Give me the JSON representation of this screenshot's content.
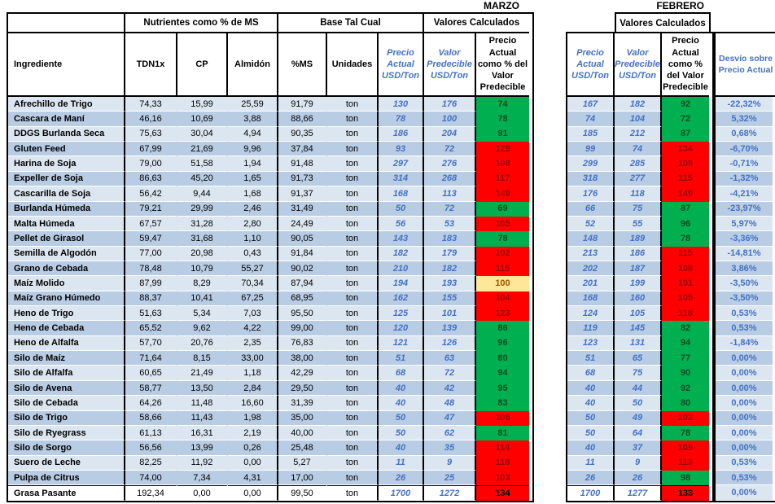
{
  "months": {
    "current": "MARZO",
    "previous": "FEBRERO"
  },
  "headers": {
    "group_nutrients": "Nutrientes como % de MS",
    "group_asfed": "Base Tal Cual",
    "group_calculated": "Valores Calculados",
    "ingredient": "Ingrediente",
    "tdn": "TDN1x",
    "cp": "CP",
    "starch": "Almidón",
    "dm": "%MS",
    "units": "Unidades",
    "price_actual": "Precio Actual USD/Ton",
    "price_predicted": "Valor Predecible USD/Ton",
    "pct": "Precio Actual como % del Valor Predecible",
    "deviation": "Desvío sobre Precio Actual"
  },
  "colors": {
    "stripe_light": "#DCE6F1",
    "stripe_dark": "#B8CCE4",
    "good_fill": "#00B050",
    "bad_fill": "#FF0000",
    "neutral_fill": "#FFE699",
    "accent_blue": "#4472C4",
    "bad_text": "#9C0006",
    "neutral_text": "#9C5700"
  },
  "rows": [
    {
      "name": "Afrechillo de Trigo",
      "tdn": "74,33",
      "cp": "15,99",
      "alm": "25,59",
      "ms": "91,79",
      "unit": "ton",
      "marzo": {
        "precio": "130",
        "valor": "176",
        "pct": "74",
        "status": "good"
      },
      "febrero": {
        "precio": "167",
        "valor": "182",
        "pct": "92",
        "status": "good"
      },
      "desvio": "-22,32%"
    },
    {
      "name": "Cascara de Maní",
      "tdn": "46,16",
      "cp": "10,69",
      "alm": "3,88",
      "ms": "88,66",
      "unit": "ton",
      "marzo": {
        "precio": "78",
        "valor": "100",
        "pct": "78",
        "status": "good"
      },
      "febrero": {
        "precio": "74",
        "valor": "104",
        "pct": "72",
        "status": "good"
      },
      "desvio": "5,32%"
    },
    {
      "name": "DDGS Burlanda Seca",
      "tdn": "75,63",
      "cp": "30,04",
      "alm": "4,94",
      "ms": "90,35",
      "unit": "ton",
      "marzo": {
        "precio": "186",
        "valor": "204",
        "pct": "91",
        "status": "good"
      },
      "febrero": {
        "precio": "185",
        "valor": "212",
        "pct": "87",
        "status": "good"
      },
      "desvio": "0,68%"
    },
    {
      "name": "Gluten Feed",
      "tdn": "67,99",
      "cp": "21,69",
      "alm": "9,96",
      "ms": "37,84",
      "unit": "ton",
      "marzo": {
        "precio": "93",
        "valor": "72",
        "pct": "129",
        "status": "bad"
      },
      "febrero": {
        "precio": "99",
        "valor": "74",
        "pct": "134",
        "status": "bad"
      },
      "desvio": "-6,70%"
    },
    {
      "name": "Harina de Soja",
      "tdn": "79,00",
      "cp": "51,58",
      "alm": "1,94",
      "ms": "91,48",
      "unit": "ton",
      "marzo": {
        "precio": "297",
        "valor": "276",
        "pct": "108",
        "status": "bad"
      },
      "febrero": {
        "precio": "299",
        "valor": "285",
        "pct": "105",
        "status": "bad"
      },
      "desvio": "-0,71%"
    },
    {
      "name": "Expeller de Soja",
      "tdn": "86,63",
      "cp": "45,20",
      "alm": "1,65",
      "ms": "91,73",
      "unit": "ton",
      "marzo": {
        "precio": "314",
        "valor": "268",
        "pct": "117",
        "status": "bad"
      },
      "febrero": {
        "precio": "318",
        "valor": "277",
        "pct": "115",
        "status": "bad"
      },
      "desvio": "-1,32%"
    },
    {
      "name": "Cascarilla de Soja",
      "tdn": "56,42",
      "cp": "9,44",
      "alm": "1,68",
      "ms": "91,37",
      "unit": "ton",
      "marzo": {
        "precio": "168",
        "valor": "113",
        "pct": "149",
        "status": "bad"
      },
      "febrero": {
        "precio": "176",
        "valor": "118",
        "pct": "149",
        "status": "bad"
      },
      "desvio": "-4,21%"
    },
    {
      "name": "Burlanda Húmeda",
      "tdn": "79,21",
      "cp": "29,99",
      "alm": "2,46",
      "ms": "31,49",
      "unit": "ton",
      "marzo": {
        "precio": "50",
        "valor": "72",
        "pct": "69",
        "status": "good"
      },
      "febrero": {
        "precio": "66",
        "valor": "75",
        "pct": "87",
        "status": "good"
      },
      "desvio": "-23,97%"
    },
    {
      "name": "Malta Húmeda",
      "tdn": "67,57",
      "cp": "31,28",
      "alm": "2,80",
      "ms": "24,49",
      "unit": "ton",
      "marzo": {
        "precio": "56",
        "valor": "53",
        "pct": "105",
        "status": "bad"
      },
      "febrero": {
        "precio": "52",
        "valor": "55",
        "pct": "96",
        "status": "good"
      },
      "desvio": "5,97%"
    },
    {
      "name": "Pellet de Girasol",
      "tdn": "59,47",
      "cp": "31,68",
      "alm": "1,10",
      "ms": "90,05",
      "unit": "ton",
      "marzo": {
        "precio": "143",
        "valor": "183",
        "pct": "78",
        "status": "good"
      },
      "febrero": {
        "precio": "148",
        "valor": "189",
        "pct": "78",
        "status": "good"
      },
      "desvio": "-3,36%"
    },
    {
      "name": "Semilla de Algodón",
      "tdn": "77,00",
      "cp": "20,98",
      "alm": "0,43",
      "ms": "91,84",
      "unit": "ton",
      "marzo": {
        "precio": "182",
        "valor": "179",
        "pct": "102",
        "status": "bad"
      },
      "febrero": {
        "precio": "213",
        "valor": "186",
        "pct": "115",
        "status": "bad"
      },
      "desvio": "-14,81%"
    },
    {
      "name": "Grano de Cebada",
      "tdn": "78,48",
      "cp": "10,79",
      "alm": "55,27",
      "ms": "90,02",
      "unit": "ton",
      "marzo": {
        "precio": "210",
        "valor": "182",
        "pct": "115",
        "status": "bad"
      },
      "febrero": {
        "precio": "202",
        "valor": "187",
        "pct": "108",
        "status": "bad"
      },
      "desvio": "3,86%"
    },
    {
      "name": "Maíz Molido",
      "tdn": "87,99",
      "cp": "8,29",
      "alm": "70,34",
      "ms": "87,94",
      "unit": "ton",
      "marzo": {
        "precio": "194",
        "valor": "193",
        "pct": "100",
        "status": "neutral"
      },
      "febrero": {
        "precio": "201",
        "valor": "199",
        "pct": "101",
        "status": "bad"
      },
      "desvio": "-3,50%"
    },
    {
      "name": "Maíz Grano Húmedo",
      "tdn": "88,37",
      "cp": "10,41",
      "alm": "67,25",
      "ms": "68,95",
      "unit": "ton",
      "marzo": {
        "precio": "162",
        "valor": "155",
        "pct": "104",
        "status": "bad"
      },
      "febrero": {
        "precio": "168",
        "valor": "160",
        "pct": "105",
        "status": "bad"
      },
      "desvio": "-3,50%"
    },
    {
      "name": "Heno de Trigo",
      "tdn": "51,63",
      "cp": "5,34",
      "alm": "7,03",
      "ms": "95,50",
      "unit": "ton",
      "marzo": {
        "precio": "125",
        "valor": "101",
        "pct": "123",
        "status": "bad"
      },
      "febrero": {
        "precio": "124",
        "valor": "105",
        "pct": "118",
        "status": "bad"
      },
      "desvio": "0,53%"
    },
    {
      "name": "Heno de Cebada",
      "tdn": "65,52",
      "cp": "9,62",
      "alm": "4,22",
      "ms": "99,00",
      "unit": "ton",
      "marzo": {
        "precio": "120",
        "valor": "139",
        "pct": "86",
        "status": "good"
      },
      "febrero": {
        "precio": "119",
        "valor": "145",
        "pct": "82",
        "status": "good"
      },
      "desvio": "0,53%"
    },
    {
      "name": "Heno de Alfalfa",
      "tdn": "57,70",
      "cp": "20,76",
      "alm": "2,35",
      "ms": "76,83",
      "unit": "ton",
      "marzo": {
        "precio": "121",
        "valor": "126",
        "pct": "96",
        "status": "good"
      },
      "febrero": {
        "precio": "123",
        "valor": "131",
        "pct": "94",
        "status": "good"
      },
      "desvio": "-1,84%"
    },
    {
      "name": "Silo de Maíz",
      "tdn": "71,64",
      "cp": "8,15",
      "alm": "33,00",
      "ms": "38,00",
      "unit": "ton",
      "marzo": {
        "precio": "51",
        "valor": "63",
        "pct": "80",
        "status": "good"
      },
      "febrero": {
        "precio": "51",
        "valor": "65",
        "pct": "77",
        "status": "good"
      },
      "desvio": "0,00%"
    },
    {
      "name": "Silo de Alfalfa",
      "tdn": "60,65",
      "cp": "21,49",
      "alm": "1,18",
      "ms": "42,29",
      "unit": "ton",
      "marzo": {
        "precio": "68",
        "valor": "72",
        "pct": "94",
        "status": "good"
      },
      "febrero": {
        "precio": "68",
        "valor": "75",
        "pct": "90",
        "status": "good"
      },
      "desvio": "0,00%"
    },
    {
      "name": "Silo de Avena",
      "tdn": "58,77",
      "cp": "13,50",
      "alm": "2,84",
      "ms": "29,50",
      "unit": "ton",
      "marzo": {
        "precio": "40",
        "valor": "42",
        "pct": "95",
        "status": "good"
      },
      "febrero": {
        "precio": "40",
        "valor": "44",
        "pct": "92",
        "status": "good"
      },
      "desvio": "0,00%"
    },
    {
      "name": "Silo de Cebada",
      "tdn": "64,26",
      "cp": "11,48",
      "alm": "16,60",
      "ms": "31,39",
      "unit": "ton",
      "marzo": {
        "precio": "40",
        "valor": "48",
        "pct": "83",
        "status": "good"
      },
      "febrero": {
        "precio": "40",
        "valor": "50",
        "pct": "80",
        "status": "good"
      },
      "desvio": "0,00%"
    },
    {
      "name": "Silo de Trigo",
      "tdn": "58,66",
      "cp": "11,43",
      "alm": "1,98",
      "ms": "35,00",
      "unit": "ton",
      "marzo": {
        "precio": "50",
        "valor": "47",
        "pct": "106",
        "status": "bad"
      },
      "febrero": {
        "precio": "50",
        "valor": "49",
        "pct": "102",
        "status": "bad"
      },
      "desvio": "0,00%"
    },
    {
      "name": "Silo de Ryegrass",
      "tdn": "61,13",
      "cp": "16,31",
      "alm": "2,19",
      "ms": "40,00",
      "unit": "ton",
      "marzo": {
        "precio": "50",
        "valor": "62",
        "pct": "81",
        "status": "good"
      },
      "febrero": {
        "precio": "50",
        "valor": "64",
        "pct": "78",
        "status": "good"
      },
      "desvio": "0,00%"
    },
    {
      "name": "Silo de Sorgo",
      "tdn": "56,56",
      "cp": "13,99",
      "alm": "0,26",
      "ms": "25,48",
      "unit": "ton",
      "marzo": {
        "precio": "40",
        "valor": "35",
        "pct": "114",
        "status": "bad"
      },
      "febrero": {
        "precio": "40",
        "valor": "37",
        "pct": "109",
        "status": "bad"
      },
      "desvio": "0,00%"
    },
    {
      "name": "Suero de Leche",
      "tdn": "82,25",
      "cp": "11,92",
      "alm": "0,00",
      "ms": "5,27",
      "unit": "ton",
      "marzo": {
        "precio": "11",
        "valor": "9",
        "pct": "118",
        "status": "bad"
      },
      "febrero": {
        "precio": "11",
        "valor": "9",
        "pct": "113",
        "status": "bad"
      },
      "desvio": "0,53%"
    },
    {
      "name": "Pulpa de Citrus",
      "tdn": "74,00",
      "cp": "7,34",
      "alm": "4,31",
      "ms": "17,00",
      "unit": "ton",
      "marzo": {
        "precio": "26",
        "valor": "25",
        "pct": "103",
        "status": "bad"
      },
      "febrero": {
        "precio": "26",
        "valor": "26",
        "pct": "98",
        "status": "good"
      },
      "desvio": "0,53%"
    },
    {
      "name": "Grasa Pasante",
      "tdn": "192,34",
      "cp": "0,00",
      "alm": "0,00",
      "ms": "99,50",
      "unit": "ton",
      "marzo": {
        "precio": "1700",
        "valor": "1272",
        "pct": "134",
        "status": "bad"
      },
      "febrero": {
        "precio": "1700",
        "valor": "1277",
        "pct": "133",
        "status": "bad"
      },
      "desvio": "0,00%"
    }
  ]
}
